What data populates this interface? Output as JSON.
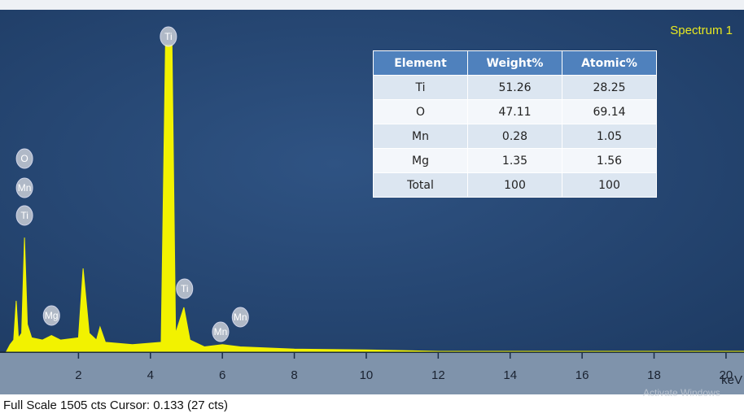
{
  "chart_data": {
    "type": "area",
    "title": "Spectrum 1",
    "x_label": "keV",
    "color": "#f2f200",
    "x": [
      0,
      0.1,
      0.2,
      0.27,
      0.33,
      0.42,
      0.5,
      0.58,
      0.7,
      1.0,
      1.25,
      1.5,
      2.0,
      2.13,
      2.3,
      2.5,
      2.6,
      2.75,
      3.5,
      4.3,
      4.42,
      4.6,
      4.7,
      4.93,
      5.1,
      5.5,
      6.0,
      6.5,
      8,
      10,
      12,
      20.5
    ],
    "values": [
      0,
      30,
      50,
      224,
      60,
      80,
      505,
      120,
      60,
      50,
      70,
      50,
      60,
      368,
      80,
      50,
      108,
      40,
      30,
      40,
      1360,
      1360,
      80,
      195,
      50,
      20,
      30,
      20,
      10,
      6,
      0,
      0
    ],
    "xlim": [
      0,
      20.5
    ],
    "xticks": [
      2,
      4,
      6,
      8,
      10,
      12,
      14,
      16,
      18,
      20
    ],
    "ylim": [
      0,
      1505
    ],
    "annotations": [
      {
        "text": "O",
        "x": 0.5
      },
      {
        "text": "Mn",
        "x": 0.5
      },
      {
        "text": "Ti",
        "x": 0.5
      },
      {
        "text": "Ti",
        "x": 4.5
      },
      {
        "text": "Mg",
        "x": 1.25
      },
      {
        "text": "Ti",
        "x": 4.95
      },
      {
        "text": "Mn",
        "x": 5.95
      },
      {
        "text": "Mn",
        "x": 6.5
      }
    ]
  },
  "table": {
    "header": [
      "Element",
      "Weight%",
      "Atomic%"
    ],
    "rows": [
      [
        "Ti",
        "51.26",
        "28.25"
      ],
      [
        "O",
        "47.11",
        "69.14"
      ],
      [
        "Mn",
        "0.28",
        "1.05"
      ],
      [
        "Mg",
        "1.35",
        "1.56"
      ],
      [
        "Total",
        "100",
        "100"
      ]
    ]
  },
  "status": "Full Scale 1505 cts Cursor: 0.133  (27 cts)",
  "watermark": "Activate Windows"
}
